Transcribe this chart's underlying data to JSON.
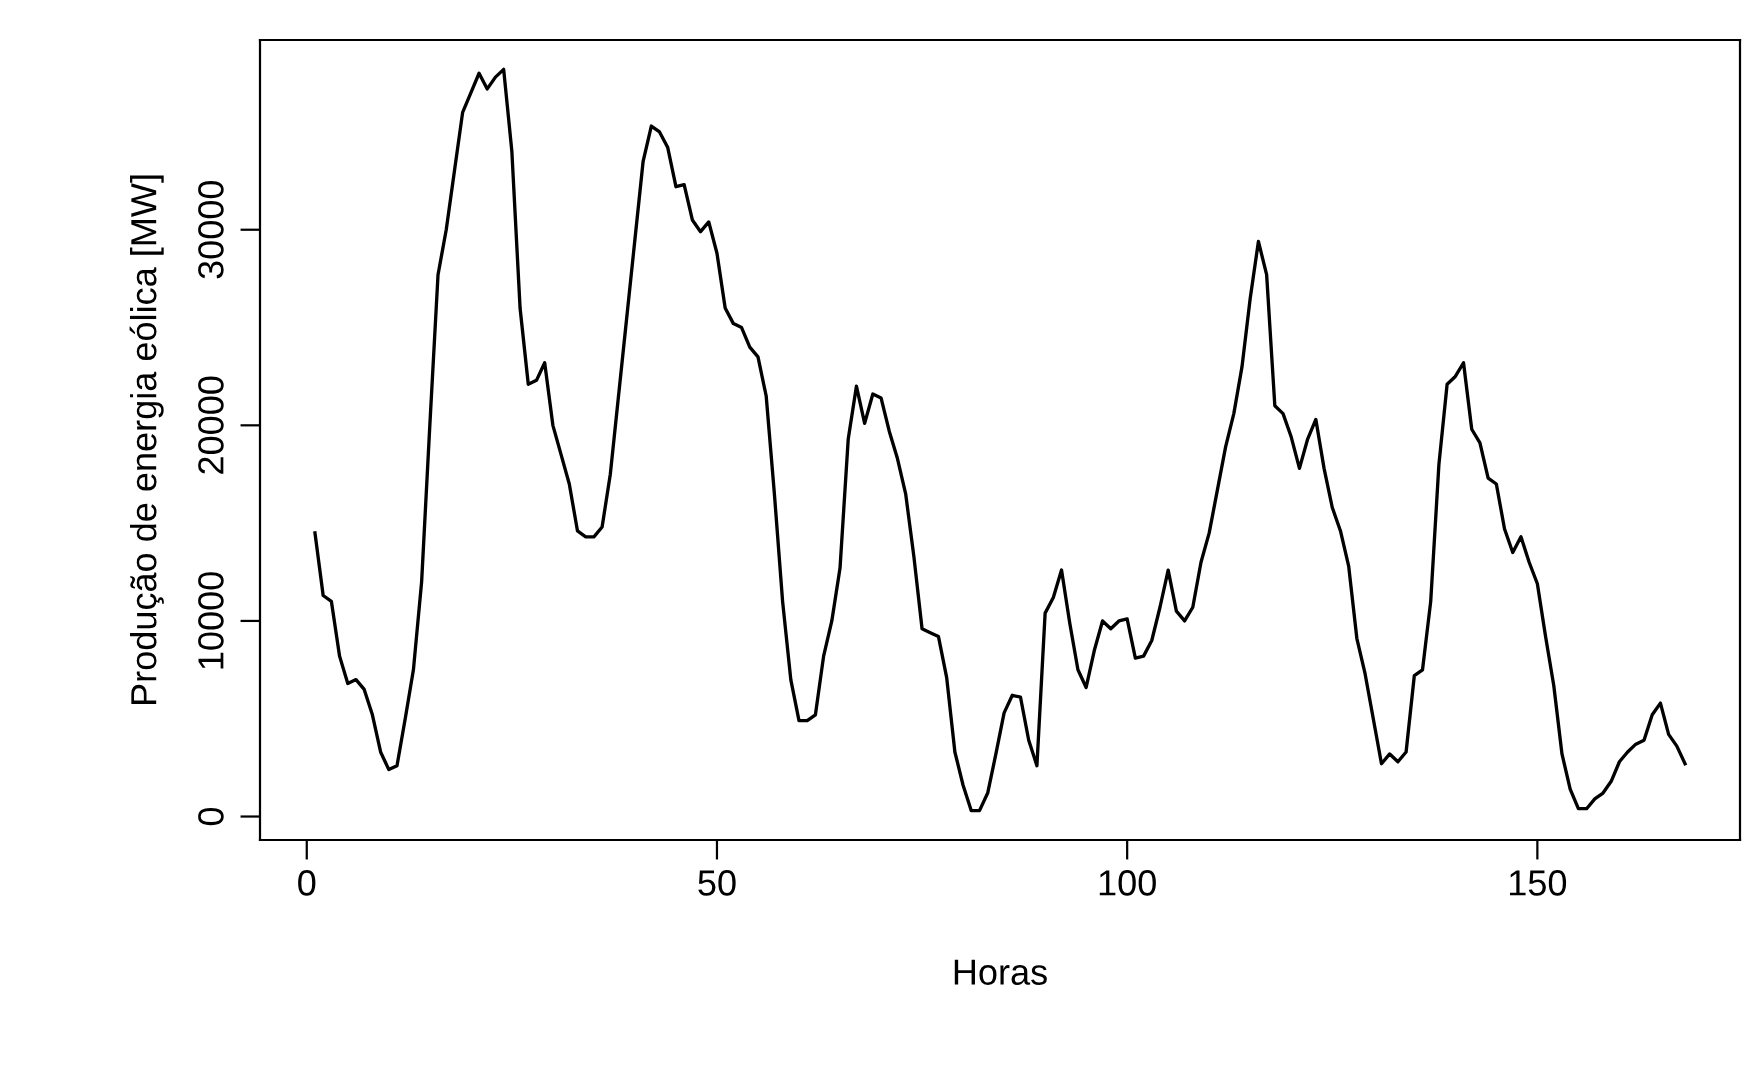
{
  "chart_data": {
    "type": "line",
    "xlabel": "Horas",
    "ylabel": "Produção de energia eólica [MW]",
    "color": "#000000",
    "grid": false,
    "legend": false,
    "marker": "none",
    "line_style": "solid",
    "x": [
      1,
      2,
      3,
      4,
      5,
      6,
      7,
      8,
      9,
      10,
      11,
      12,
      13,
      14,
      15,
      16,
      17,
      18,
      19,
      20,
      21,
      22,
      23,
      24,
      25,
      26,
      27,
      28,
      29,
      30,
      31,
      32,
      33,
      34,
      35,
      36,
      37,
      38,
      39,
      40,
      41,
      42,
      43,
      44,
      45,
      46,
      47,
      48,
      49,
      50,
      51,
      52,
      53,
      54,
      55,
      56,
      57,
      58,
      59,
      60,
      61,
      62,
      63,
      64,
      65,
      66,
      67,
      68,
      69,
      70,
      71,
      72,
      73,
      74,
      75,
      76,
      77,
      78,
      79,
      80,
      81,
      82,
      83,
      84,
      85,
      86,
      87,
      88,
      89,
      90,
      91,
      92,
      93,
      94,
      95,
      96,
      97,
      98,
      99,
      100,
      101,
      102,
      103,
      104,
      105,
      106,
      107,
      108,
      109,
      110,
      111,
      112,
      113,
      114,
      115,
      116,
      117,
      118,
      119,
      120,
      121,
      122,
      123,
      124,
      125,
      126,
      127,
      128,
      129,
      130,
      131,
      132,
      133,
      134,
      135,
      136,
      137,
      138,
      139,
      140,
      141,
      142,
      143,
      144,
      145,
      146,
      147,
      148,
      149,
      150,
      151,
      152,
      153,
      154,
      155,
      156,
      157,
      158,
      159,
      160,
      161,
      162,
      163,
      164,
      165,
      166,
      167,
      168
    ],
    "values": [
      14500,
      11300,
      11000,
      8200,
      6800,
      7000,
      6500,
      5200,
      3300,
      2400,
      2600,
      5000,
      7500,
      12000,
      20000,
      27700,
      30000,
      33000,
      36000,
      37000,
      38000,
      37200,
      37800,
      38200,
      34000,
      26000,
      22100,
      22300,
      23200,
      20000,
      18500,
      17000,
      14600,
      14300,
      14300,
      14800,
      17500,
      21500,
      25500,
      29500,
      33500,
      35300,
      35000,
      34200,
      32200,
      32300,
      30500,
      29900,
      30400,
      28800,
      26000,
      25200,
      25000,
      24000,
      23500,
      21500,
      16500,
      11000,
      7000,
      4900,
      4900,
      5200,
      8200,
      10000,
      12700,
      19300,
      22000,
      20100,
      21600,
      21400,
      19700,
      18300,
      16500,
      13300,
      9600,
      9400,
      9200,
      7100,
      3300,
      1600,
      300,
      300,
      1200,
      3200,
      5300,
      6200,
      6100,
      3900,
      2600,
      10400,
      11200,
      12600,
      9900,
      7500,
      6600,
      8500,
      10000,
      9600,
      10000,
      10100,
      8100,
      8200,
      9000,
      10700,
      12600,
      10500,
      10000,
      10700,
      13000,
      14500,
      16700,
      18900,
      20600,
      23000,
      26500,
      29400,
      27700,
      21000,
      20600,
      19400,
      17800,
      19300,
      20300,
      17800,
      15800,
      14600,
      12800,
      9100,
      7300,
      5000,
      2700,
      3200,
      2800,
      3300,
      7200,
      7500,
      11000,
      18000,
      22100,
      22500,
      23200,
      19800,
      19100,
      17300,
      17000,
      14700,
      13500,
      14300,
      13000,
      11900,
      9200,
      6700,
      3200,
      1400,
      400,
      400,
      900,
      1200,
      1800,
      2800,
      3300,
      3700,
      3900,
      5200,
      5800,
      4200,
      3600,
      2700
    ],
    "xlim": [
      -5.7,
      174.7
    ],
    "ylim": [
      -1200,
      39700
    ],
    "xticks": [
      0,
      50,
      100,
      150
    ],
    "yticks": [
      0,
      10000,
      20000,
      30000
    ]
  }
}
